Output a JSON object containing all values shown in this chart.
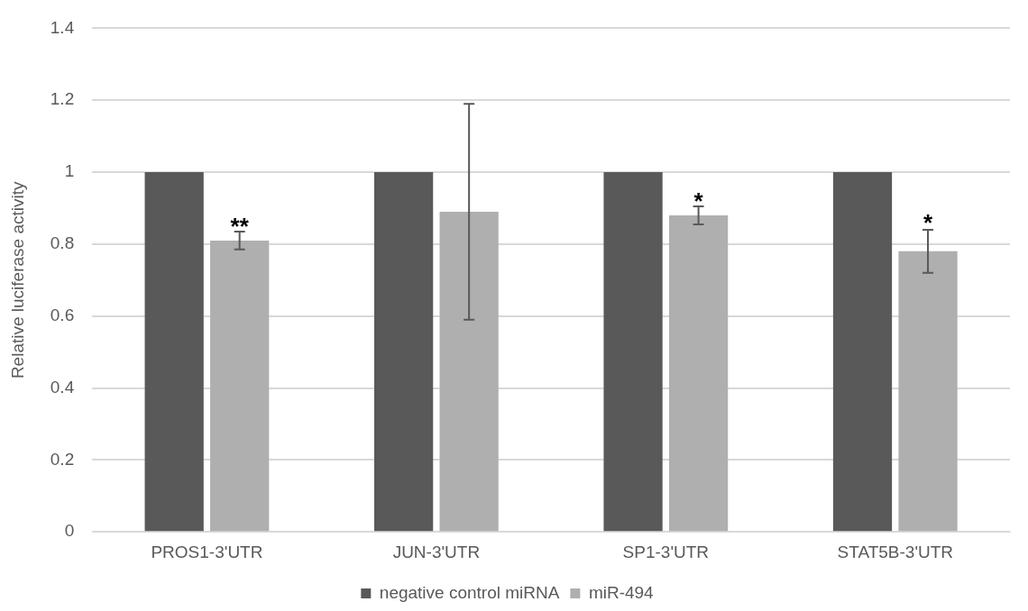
{
  "chart_data": {
    "type": "bar",
    "ylabel": "Relative luciferase activity",
    "categories": [
      "PROS1-3'UTR",
      "JUN-3'UTR",
      "SP1-3'UTR",
      "STAT5B-3'UTR"
    ],
    "series": [
      {
        "name": "negative control miRNA",
        "color": "#595959",
        "values": [
          1,
          1,
          1,
          1
        ]
      },
      {
        "name": "miR-494",
        "color": "#afafaf",
        "values": [
          0.81,
          0.89,
          0.88,
          0.78
        ],
        "errors": [
          0.025,
          0.3,
          0.025,
          0.06
        ]
      }
    ],
    "ylim": [
      0,
      1.4
    ],
    "yticks": [
      0,
      0.2,
      0.4,
      0.6,
      0.8,
      1,
      1.2,
      1.4
    ],
    "grid": "y",
    "legend": "bottom",
    "annotations": [
      {
        "text": "**",
        "x": "PROS1-3'UTR",
        "y": 0.86
      },
      {
        "text": "*",
        "x": "SP1-3'UTR",
        "y": 0.93
      },
      {
        "text": "*",
        "x": "STAT5B-3'UTR",
        "y": 0.87
      }
    ]
  }
}
